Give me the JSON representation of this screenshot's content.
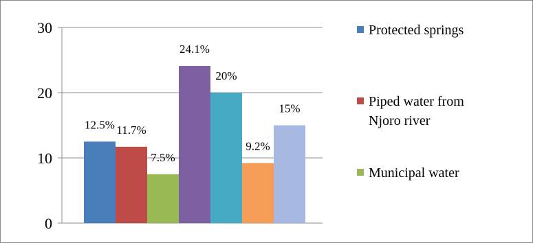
{
  "chart_data": {
    "type": "bar",
    "title": "",
    "xlabel": "",
    "ylabel": "",
    "ylim": [
      0,
      30
    ],
    "yticks": [
      0,
      10,
      20,
      30
    ],
    "grid": true,
    "legend_position": "right",
    "series": [
      {
        "name": "Protected springs",
        "value": 12.5,
        "label": "12.5%",
        "color": "#4a7ebb"
      },
      {
        "name": "Piped water from Njoro river",
        "value": 11.7,
        "label": "11.7%",
        "color": "#be4b48"
      },
      {
        "name": "Municipal water",
        "value": 7.5,
        "label": "7.5%",
        "color": "#98b954"
      },
      {
        "name": "",
        "value": 24.1,
        "label": "24.1%",
        "color": "#7d60a0"
      },
      {
        "name": "",
        "value": 20,
        "label": "20%",
        "color": "#46aac5"
      },
      {
        "name": "",
        "value": 9.2,
        "label": "9.2%",
        "color": "#f59d56"
      },
      {
        "name": "",
        "value": 15,
        "label": "15%",
        "color": "#a7b9e3"
      }
    ],
    "legend": [
      {
        "lines": [
          "Protected springs"
        ],
        "color": "#4a7ebb"
      },
      {
        "lines": [
          "Piped water from",
          "Njoro river"
        ],
        "color": "#be4b48"
      },
      {
        "lines": [
          "Municipal water"
        ],
        "color": "#98b954"
      }
    ]
  }
}
